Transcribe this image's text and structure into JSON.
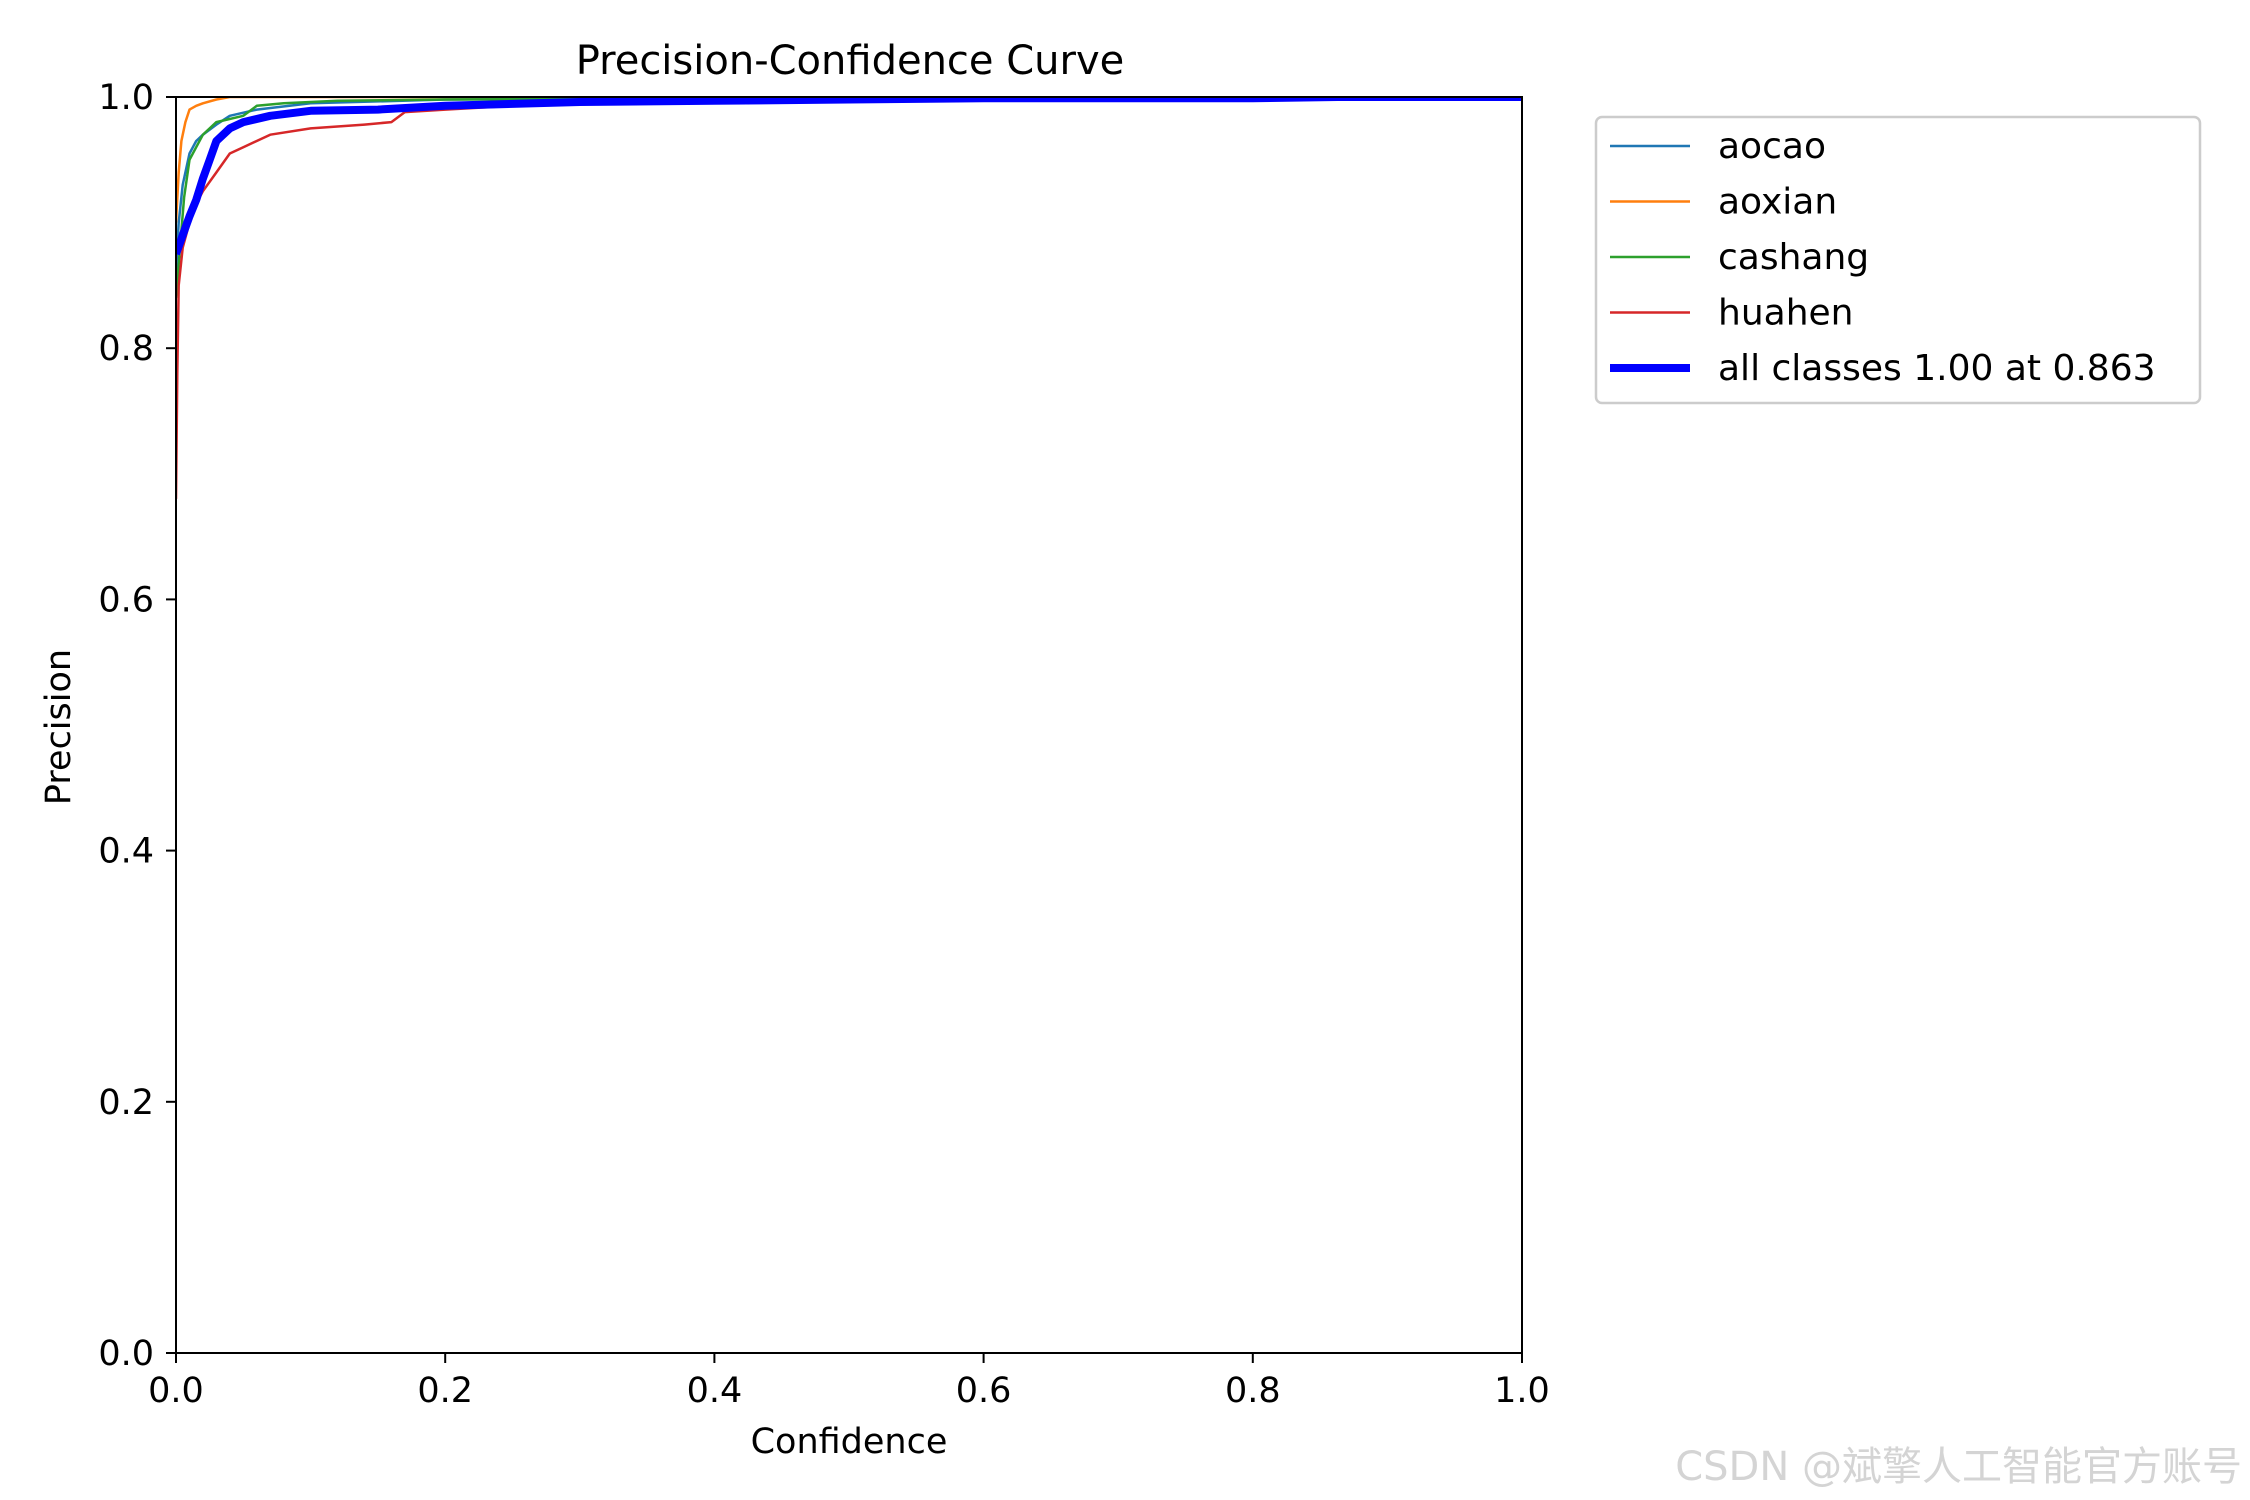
{
  "chart_data": {
    "type": "line",
    "title": "Precision-Confidence Curve",
    "xlabel": "Confidence",
    "ylabel": "Precision",
    "xlim": [
      0,
      1
    ],
    "ylim": [
      0,
      1
    ],
    "xticks": [
      "0.0",
      "0.2",
      "0.4",
      "0.6",
      "0.8",
      "1.0"
    ],
    "yticks": [
      "0.0",
      "0.2",
      "0.4",
      "0.6",
      "0.8",
      "1.0"
    ],
    "grid": false,
    "legend_position": "outside-right-top",
    "series": [
      {
        "name": "aocao",
        "color": "#1f77b4",
        "width": 2.5,
        "x": [
          0.0,
          0.002,
          0.005,
          0.01,
          0.015,
          0.02,
          0.03,
          0.04,
          0.06,
          0.1,
          0.2,
          0.4,
          0.6,
          0.8,
          1.0
        ],
        "y": [
          0.86,
          0.9,
          0.93,
          0.955,
          0.965,
          0.97,
          0.978,
          0.985,
          0.99,
          0.995,
          0.998,
          0.999,
          1.0,
          1.0,
          1.0
        ]
      },
      {
        "name": "aoxian",
        "color": "#ff7f0e",
        "width": 2.5,
        "x": [
          0.0,
          0.002,
          0.004,
          0.007,
          0.01,
          0.015,
          0.02,
          0.03,
          0.04,
          0.1,
          0.3,
          0.5,
          0.7,
          1.0
        ],
        "y": [
          0.9,
          0.94,
          0.965,
          0.98,
          0.99,
          0.993,
          0.995,
          0.998,
          1.0,
          1.0,
          1.0,
          1.0,
          1.0,
          1.0
        ]
      },
      {
        "name": "cashang",
        "color": "#2ca02c",
        "width": 2.5,
        "x": [
          0.0,
          0.003,
          0.006,
          0.01,
          0.015,
          0.02,
          0.03,
          0.05,
          0.06,
          0.08,
          0.12,
          0.2,
          0.4,
          0.6,
          0.8,
          1.0
        ],
        "y": [
          0.84,
          0.88,
          0.92,
          0.95,
          0.96,
          0.97,
          0.98,
          0.985,
          0.993,
          0.995,
          0.997,
          0.998,
          0.999,
          1.0,
          1.0,
          1.0
        ]
      },
      {
        "name": "huahen",
        "color": "#d62728",
        "width": 2.5,
        "x": [
          0.0,
          0.001,
          0.002,
          0.005,
          0.01,
          0.015,
          0.02,
          0.03,
          0.04,
          0.05,
          0.07,
          0.1,
          0.14,
          0.16,
          0.17,
          0.2,
          0.25,
          0.3,
          0.4,
          0.6,
          0.8,
          1.0
        ],
        "y": [
          0.68,
          0.78,
          0.85,
          0.88,
          0.9,
          0.915,
          0.925,
          0.94,
          0.955,
          0.96,
          0.97,
          0.975,
          0.978,
          0.98,
          0.988,
          0.99,
          0.993,
          0.996,
          0.998,
          1.0,
          1.0,
          1.0
        ]
      },
      {
        "name": "all classes 1.00 at 0.863",
        "color": "#0000ff",
        "width": 8,
        "x": [
          0.0,
          0.005,
          0.01,
          0.015,
          0.02,
          0.025,
          0.03,
          0.04,
          0.05,
          0.07,
          0.1,
          0.15,
          0.2,
          0.3,
          0.4,
          0.5,
          0.6,
          0.8,
          0.863,
          1.0
        ],
        "y": [
          0.875,
          0.89,
          0.905,
          0.918,
          0.935,
          0.95,
          0.965,
          0.975,
          0.98,
          0.985,
          0.989,
          0.99,
          0.993,
          0.996,
          0.997,
          0.998,
          0.999,
          0.999,
          1.0,
          1.0
        ]
      }
    ]
  },
  "watermark": "CSDN @斌擎人工智能官方账号"
}
